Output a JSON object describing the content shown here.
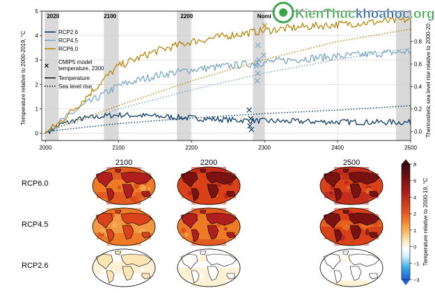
{
  "chart_data": {
    "type": "line",
    "panel_top": {
      "xlim": [
        1995,
        2500
      ],
      "ylim_left": [
        -0.3,
        5.0
      ],
      "ylim_right": [
        -0.08,
        1.07
      ],
      "ylabel_left": "Temperature relative to 2000-2019, °C",
      "ylabel_right": "Thermosteric sea level rise relative to 2000-20…",
      "x_ticks": [
        2000,
        2100,
        2200,
        2300,
        2400,
        2500
      ],
      "y_ticks_left": [
        0,
        1,
        2,
        3,
        4,
        5
      ],
      "y_ticks_right": [
        "0.0",
        "0.2",
        "0.4",
        "0.6",
        "0.8"
      ],
      "y_ticks_right_values": [
        0.0,
        0.2,
        0.4,
        0.6,
        0.8
      ],
      "band_labels": [
        {
          "x": 2002,
          "label": "2020"
        },
        {
          "x": 2080,
          "label": "2100"
        },
        {
          "x": 2185,
          "label": "2200"
        },
        {
          "x": 2290,
          "label": "Nomi"
        }
      ],
      "bands": [
        [
          1999,
          2018
        ],
        [
          2080,
          2100
        ],
        [
          2180,
          2199
        ],
        [
          2284,
          2300
        ],
        [
          2480,
          2499
        ]
      ],
      "grid": true,
      "legend": {
        "placement": "top-left",
        "entries": [
          {
            "label": "RCP2.6",
            "color": "#0b3b63",
            "style": "solid"
          },
          {
            "label": "RCP4.5",
            "color": "#7ba7c4",
            "style": "solid"
          },
          {
            "label": "RCP6.0",
            "color": "#b8860b",
            "style": "solid"
          },
          {
            "label": "CMIP5 model temperature, 2300",
            "style": "x-marker"
          },
          {
            "label": "Temperature",
            "style": "solid-black"
          },
          {
            "label": "Sea level rise",
            "style": "dotted-black"
          }
        ]
      },
      "series": [
        {
          "name": "RCP2.6",
          "color": "#0b3b63",
          "x": [
            2000,
            2020,
            2050,
            2080,
            2100,
            2150,
            2200,
            2250,
            2300,
            2350,
            2400,
            2450,
            2500
          ],
          "y": [
            0.0,
            0.35,
            0.6,
            0.7,
            0.75,
            0.7,
            0.62,
            0.55,
            0.5,
            0.48,
            0.46,
            0.45,
            0.45
          ]
        },
        {
          "name": "RCP4.5",
          "color": "#7ba7c4",
          "x": [
            2000,
            2020,
            2050,
            2080,
            2100,
            2150,
            2200,
            2250,
            2300,
            2350,
            2400,
            2450,
            2500
          ],
          "y": [
            0.0,
            0.45,
            1.1,
            1.6,
            1.95,
            2.35,
            2.6,
            2.75,
            2.9,
            3.05,
            3.15,
            3.25,
            3.35
          ]
        },
        {
          "name": "RCP6.0",
          "color": "#b8860b",
          "x": [
            2000,
            2020,
            2050,
            2080,
            2100,
            2150,
            2200,
            2250,
            2300,
            2350,
            2400,
            2450,
            2500
          ],
          "y": [
            0.0,
            0.45,
            1.3,
            2.2,
            2.75,
            3.35,
            3.75,
            4.0,
            4.2,
            4.35,
            4.45,
            4.55,
            4.65
          ]
        }
      ],
      "sea_level_series": [
        {
          "name": "RCP2.6",
          "color": "#0b3b63",
          "x": [
            2000,
            2100,
            2200,
            2300,
            2400,
            2500
          ],
          "y": [
            0.0,
            0.07,
            0.12,
            0.16,
            0.19,
            0.23
          ]
        },
        {
          "name": "RCP4.5",
          "color": "#7ba7c4",
          "x": [
            2000,
            2100,
            2200,
            2300,
            2400,
            2500
          ],
          "y": [
            0.0,
            0.2,
            0.37,
            0.52,
            0.64,
            0.74
          ]
        },
        {
          "name": "RCP6.0",
          "color": "#b8860b",
          "x": [
            2000,
            2100,
            2200,
            2300,
            2400,
            2500
          ],
          "y": [
            0.0,
            0.23,
            0.45,
            0.64,
            0.8,
            0.91
          ]
        }
      ],
      "cmip5_markers": [
        {
          "x": 2280,
          "y": 0.3
        },
        {
          "x": 2281,
          "y": 0.6
        },
        {
          "x": 2279,
          "y": 0.95
        },
        {
          "x": 2282,
          "y": 0.15
        },
        {
          "x": 2290,
          "y": 2.15
        },
        {
          "x": 2291,
          "y": 2.45
        },
        {
          "x": 2289,
          "y": 2.75
        },
        {
          "x": 2290,
          "y": 2.9
        },
        {
          "x": 2292,
          "y": 3.0
        },
        {
          "x": 2291,
          "y": 3.6
        },
        {
          "x": 2300,
          "y": 4.4
        },
        {
          "x": 2299,
          "y": 3.2
        }
      ]
    },
    "panel_maps": {
      "column_labels": [
        "2100",
        "2200",
        "2500"
      ],
      "row_labels": [
        "RCP6.0",
        "RCP4.5",
        "RCP2.6"
      ],
      "colorbar": {
        "label": "Temperature relative to 2000-19, °C",
        "ticks": [
          8,
          6,
          4,
          2,
          1,
          0,
          -1,
          -3
        ],
        "tick_labels": [
          "8",
          "6",
          "4",
          "2",
          "1",
          "0",
          "−1",
          "−3"
        ]
      }
    }
  },
  "watermark": {
    "text_main": "KienThuc",
    "text_accent": "khoahoc",
    "text_suffix": ".org"
  }
}
